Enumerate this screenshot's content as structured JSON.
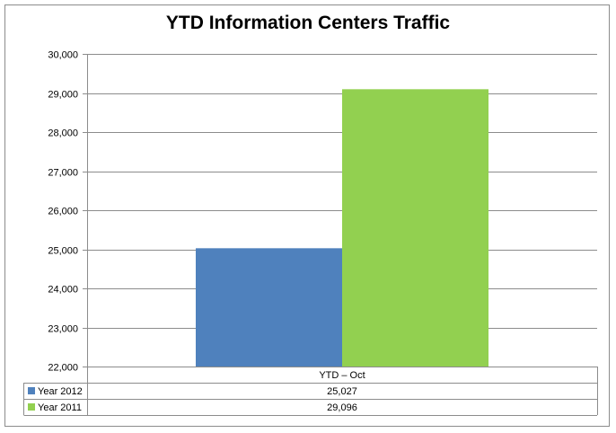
{
  "chart_data": {
    "type": "bar",
    "title": "YTD Information Centers Traffic",
    "categories": [
      "YTD – Oct"
    ],
    "series": [
      {
        "name": "Year 2012",
        "values": [
          25027
        ],
        "display": [
          "25,027"
        ],
        "color": "#4f81bd"
      },
      {
        "name": "Year 2011",
        "values": [
          29096
        ],
        "display": [
          "29,096"
        ],
        "color": "#92d050"
      }
    ],
    "ylim": [
      22000,
      30000
    ],
    "yticks": [
      22000,
      23000,
      24000,
      25000,
      26000,
      27000,
      28000,
      29000,
      30000
    ],
    "ytick_labels": [
      "22,000",
      "23,000",
      "24,000",
      "25,000",
      "26,000",
      "27,000",
      "28,000",
      "29,000",
      "30,000"
    ],
    "grid": true,
    "legend": "data-table",
    "xlabel": "",
    "ylabel": ""
  }
}
